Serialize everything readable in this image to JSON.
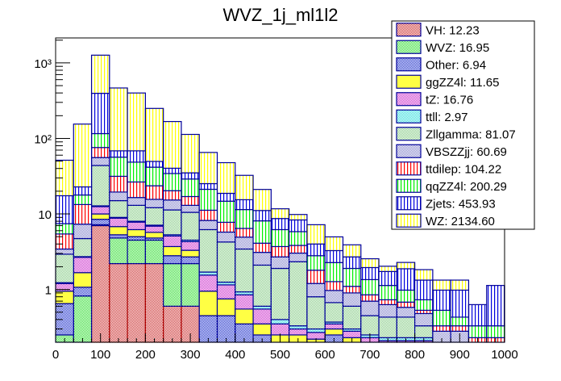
{
  "chart_data": {
    "type": "bar",
    "stacked": true,
    "title": "WVZ_1j_ml1l2",
    "xlabel": "",
    "ylabel": "",
    "xlim": [
      0,
      1000
    ],
    "ylim": [
      0.2,
      2140
    ],
    "yscale": "log",
    "bin_edges": [
      0,
      40,
      80,
      120,
      160,
      200,
      240,
      280,
      320,
      360,
      400,
      440,
      480,
      520,
      560,
      600,
      640,
      680,
      720,
      760,
      800,
      840,
      880,
      920,
      960,
      1000
    ],
    "x_ticks": [
      "0",
      "100",
      "200",
      "300",
      "400",
      "500",
      "600",
      "700",
      "800",
      "900",
      "1000"
    ],
    "x_tick_values": [
      0,
      100,
      200,
      300,
      400,
      500,
      600,
      700,
      800,
      900,
      1000
    ],
    "y_ticks": [
      {
        "value": 1,
        "label": "1"
      },
      {
        "value": 10,
        "label": "10"
      },
      {
        "value": 100,
        "label": "10²"
      },
      {
        "value": 1000,
        "label": "10³"
      }
    ],
    "grid": false,
    "legend_position": "top-right",
    "series": [
      {
        "name": "VH",
        "legend": "VH: 12.23",
        "color": "#cc3333",
        "edge": "#aa0000",
        "pattern": "hatch",
        "values": [
          0,
          0,
          7.0,
          2.2,
          2.2,
          2.2,
          0.6,
          0.6,
          0,
          0,
          0,
          0,
          0,
          0,
          0,
          0,
          0,
          0,
          0,
          0,
          0,
          0,
          0,
          0,
          0
        ]
      },
      {
        "name": "WVZ",
        "legend": "WVZ: 16.95",
        "color": "#33dd33",
        "edge": "#000099",
        "pattern": "hatch",
        "values": [
          0.25,
          0.82,
          0.2,
          2.6,
          2.3,
          2.3,
          1.6,
          1.6,
          0.2,
          0.2,
          0.2,
          0.15,
          0.1,
          0.15,
          0.12,
          0.2,
          0.15,
          0.1,
          0.1,
          0.1,
          0.1,
          0,
          0,
          0,
          0
        ]
      },
      {
        "name": "Other",
        "legend": "Other: 6.94",
        "color": "#2233cc",
        "edge": "#000099",
        "pattern": "hatch",
        "values": [
          0.4,
          0.25,
          1.3,
          0.5,
          0.5,
          0.3,
          0.6,
          0.5,
          0.25,
          0.25,
          0.15,
          0.1,
          0.1,
          0.05,
          0.05,
          0.05,
          0.05,
          0.05,
          0.05,
          0.05,
          0.05,
          0.03,
          0.03,
          0.03,
          0.03
        ]
      },
      {
        "name": "ggZZ4l",
        "legend": "ggZZ4l: 11.65",
        "color": "#ffff44",
        "edge": "#000099",
        "pattern": "solid",
        "values": [
          0.3,
          0.6,
          1.5,
          1.5,
          1.2,
          0.9,
          0.9,
          0.6,
          0.5,
          0.3,
          0.2,
          0.1,
          0.05,
          0.05,
          0.05,
          0.05,
          0.03,
          0.03,
          0.03,
          0.03,
          0.03,
          0.02,
          0.02,
          0.02,
          0.02
        ]
      },
      {
        "name": "tZ",
        "legend": "tZ: 16.76",
        "color": "#cc33cc",
        "edge": "#000099",
        "pattern": "hatch",
        "values": [
          0.25,
          1.0,
          2.5,
          2.0,
          1.6,
          1.2,
          1.4,
          1.0,
          0.6,
          0.4,
          0.3,
          0.2,
          0.1,
          0.05,
          0.05,
          0.05,
          0.05,
          0.05,
          0.03,
          0.03,
          0.03,
          0.02,
          0.02,
          0.02,
          0.02
        ]
      },
      {
        "name": "ttll",
        "legend": "ttll: 2.97",
        "color": "#33dddd",
        "edge": "#000099",
        "pattern": "hatch",
        "values": [
          0.03,
          0.05,
          0.3,
          0.2,
          0.2,
          0.2,
          0.2,
          0.2,
          0.15,
          0.1,
          0.08,
          0.05,
          0.05,
          0.03,
          0.03,
          0.02,
          0.02,
          0.02,
          0.02,
          0.02,
          0.02,
          0.01,
          0.01,
          0.01,
          0.01
        ]
      },
      {
        "name": "Zllgamma",
        "legend": "Zllgamma: 81.07",
        "color": "#88cc88",
        "edge": "#000099",
        "pattern": "hatch",
        "values": [
          1.7,
          2.0,
          31.0,
          6.0,
          5.0,
          5.0,
          6.0,
          6.0,
          4.5,
          3.0,
          2.5,
          1.5,
          1.5,
          2.0,
          0.5,
          0.3,
          0.3,
          0.2,
          0.2,
          0.2,
          0.1,
          0.1,
          0.1,
          0.05,
          0.05
        ]
      },
      {
        "name": "VBSZZjj",
        "legend": "VBSZZjj: 60.69",
        "color": "#8888cc",
        "edge": "#000099",
        "pattern": "hatch",
        "values": [
          0.5,
          2.6,
          12.0,
          4.5,
          3.5,
          3.5,
          4.0,
          2.5,
          2.0,
          1.5,
          1.5,
          1.0,
          0.8,
          0.7,
          0.4,
          0.3,
          0.3,
          0.25,
          0.2,
          0.15,
          0.15,
          0.1,
          0.1,
          0.05,
          0.05
        ]
      },
      {
        "name": "ttdilep",
        "legend": "ttdilep: 104.22",
        "color": "#ff0000",
        "edge": "#000099",
        "pattern": "vlines",
        "values": [
          2.0,
          6.0,
          20.0,
          12.0,
          10.0,
          8.0,
          5.0,
          4.0,
          3.0,
          2.0,
          1.5,
          1.0,
          1.0,
          0.8,
          0.6,
          0.3,
          0.2,
          0.15,
          0.1,
          0.1,
          0.05,
          0.05,
          0.05,
          0.05,
          0.05
        ]
      },
      {
        "name": "qqZZ4l",
        "legend": "qqZZ4l: 200.29",
        "color": "#00ee00",
        "edge": "#000099",
        "pattern": "vlines",
        "values": [
          2.0,
          4.5,
          40.0,
          25.0,
          22.0,
          18.0,
          14.0,
          12.0,
          10.0,
          7.0,
          5.0,
          4.0,
          2.5,
          2.0,
          1.0,
          1.0,
          0.8,
          0.5,
          0.4,
          0.3,
          0.2,
          0.2,
          0.1,
          0.1,
          0.1
        ]
      },
      {
        "name": "Zjets",
        "legend": "Zjets: 453.93",
        "color": "#0000dd",
        "edge": "#000099",
        "pattern": "vlines",
        "values": [
          10.0,
          5.0,
          280.0,
          12.0,
          20.0,
          8.0,
          6.0,
          6.0,
          4.0,
          4.0,
          4.0,
          3.0,
          2.5,
          2.5,
          1.2,
          1.0,
          0.8,
          0.6,
          0.6,
          0.9,
          0.6,
          0.45,
          0.55,
          0.3,
          0.8
        ]
      },
      {
        "name": "WZ",
        "legend": "WZ: 2134.60",
        "color": "#ffff00",
        "edge": "#000099",
        "pattern": "vlines",
        "values": [
          34.0,
          132.0,
          870.0,
          397.0,
          331.0,
          200.0,
          127.0,
          78.0,
          40.0,
          29.0,
          17.0,
          10.0,
          3.0,
          1.5,
          3.2,
          1.7,
          1.2,
          0.6,
          0.3,
          0.4,
          0.5,
          0.35,
          0.35,
          0.0,
          0.0
        ]
      }
    ]
  }
}
